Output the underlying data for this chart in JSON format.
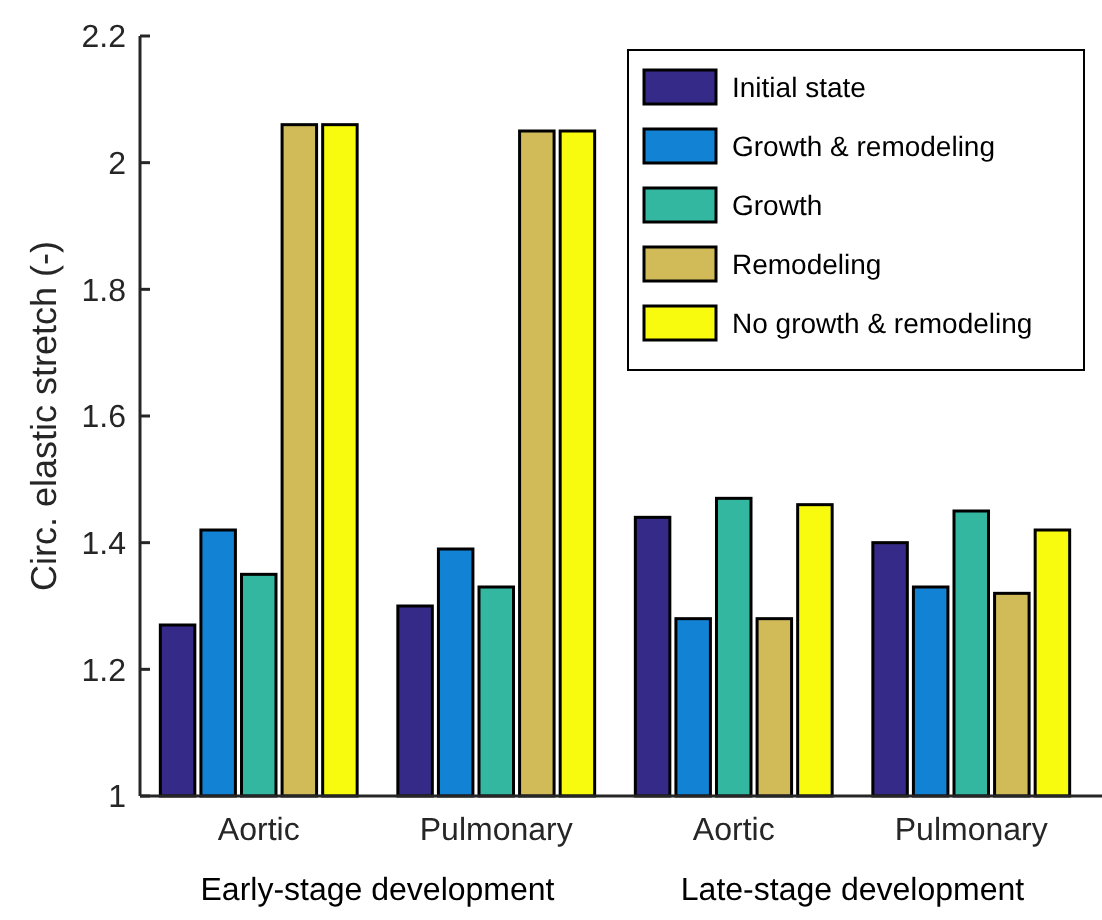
{
  "chart_data": {
    "type": "bar",
    "ylabel": "Circ. elastic stretch (-)",
    "categories": [
      "Aortic",
      "Pulmonary",
      "Aortic",
      "Pulmonary"
    ],
    "series": [
      {
        "name": "Initial state",
        "color": "#352a87",
        "values": [
          1.27,
          1.3,
          1.44,
          1.4
        ]
      },
      {
        "name": "Growth & remodeling",
        "color": "#1283d4",
        "values": [
          1.42,
          1.39,
          1.28,
          1.33
        ]
      },
      {
        "name": "Growth",
        "color": "#33b7a0",
        "values": [
          1.35,
          1.33,
          1.47,
          1.45
        ]
      },
      {
        "name": "Remodeling",
        "color": "#d1bb59",
        "values": [
          2.06,
          2.05,
          1.28,
          1.32
        ]
      },
      {
        "name": "No growth & remodeling",
        "color": "#f9fb0e",
        "values": [
          2.06,
          2.05,
          1.46,
          1.42
        ]
      }
    ],
    "ylim": [
      1,
      2.2
    ],
    "yticks": [
      1,
      1.2,
      1.4,
      1.6,
      1.8,
      2,
      2.2
    ],
    "grid": false,
    "legend": "top right",
    "annotations": [
      "Early-stage development",
      "Late-stage development"
    ]
  }
}
